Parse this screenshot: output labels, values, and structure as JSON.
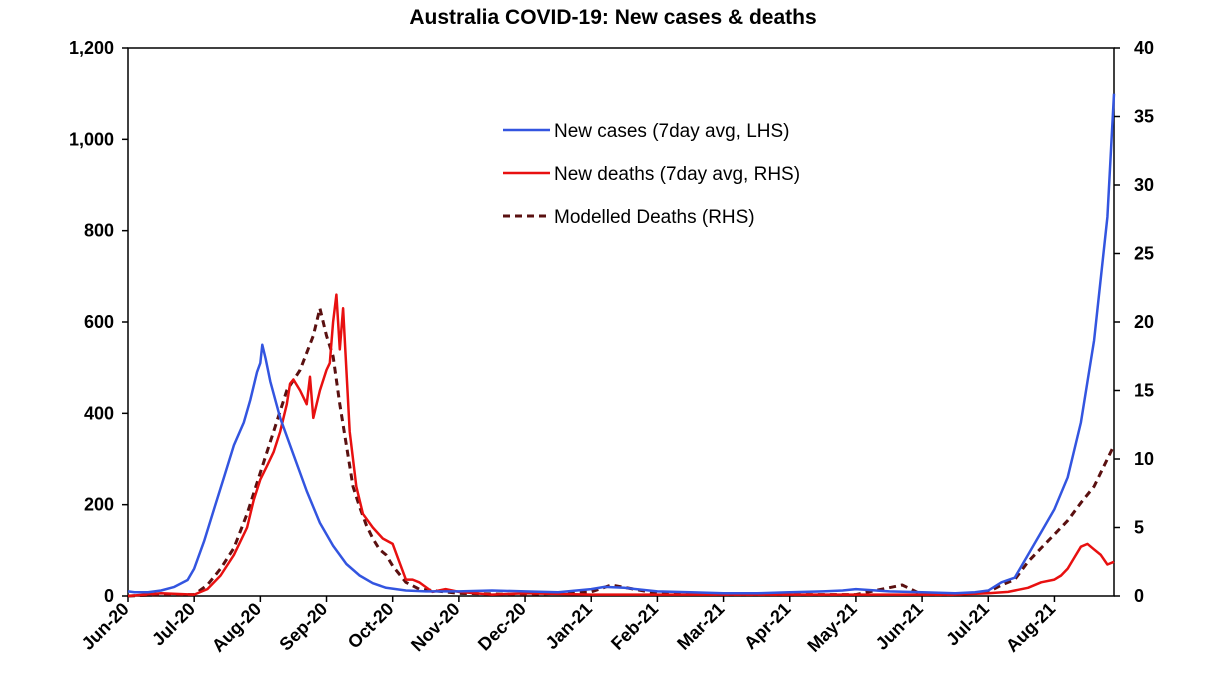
{
  "chart_data": {
    "type": "line",
    "title": "Australia COVID-19: New cases & deaths",
    "x_tick_labels": [
      "Jun-20",
      "Jul-20",
      "Aug-20",
      "Sep-20",
      "Oct-20",
      "Nov-20",
      "Dec-20",
      "Jan-21",
      "Feb-21",
      "Mar-21",
      "Apr-21",
      "May-21",
      "Jun-21",
      "Jul-21",
      "Aug-21"
    ],
    "x_range_months": [
      0,
      14.9
    ],
    "y_left": {
      "ticks": [
        0,
        200,
        400,
        600,
        800,
        1000,
        1200
      ],
      "tick_labels": [
        "0",
        "200",
        "400",
        "600",
        "800",
        "1,000",
        "1,200"
      ],
      "range": [
        0,
        1200
      ]
    },
    "y_right": {
      "ticks": [
        0,
        5,
        10,
        15,
        20,
        25,
        30,
        35,
        40
      ],
      "tick_labels": [
        "0",
        "5",
        "10",
        "15",
        "20",
        "25",
        "30",
        "35",
        "40"
      ],
      "range": [
        0,
        40
      ]
    },
    "grid": false,
    "legend_position": "top-center",
    "series": [
      {
        "name": "New cases (7day avg, LHS)",
        "axis": "left",
        "color": "#3355e0",
        "style": "solid",
        "x": [
          0,
          0.1,
          0.3,
          0.5,
          0.7,
          0.9,
          1.0,
          1.15,
          1.3,
          1.45,
          1.6,
          1.75,
          1.85,
          1.95,
          2.0,
          2.03,
          2.08,
          2.15,
          2.3,
          2.5,
          2.7,
          2.9,
          3.1,
          3.3,
          3.5,
          3.7,
          3.9,
          4.2,
          4.5,
          5.0,
          5.5,
          6.0,
          6.5,
          7.0,
          7.2,
          7.5,
          8.0,
          8.5,
          9.0,
          9.5,
          10.0,
          10.5,
          10.8,
          11.0,
          11.5,
          12.0,
          12.5,
          12.8,
          13.0,
          13.2,
          13.4,
          13.6,
          13.8,
          14.0,
          14.2,
          14.4,
          14.6,
          14.8,
          14.9
        ],
        "y": [
          10,
          8,
          8,
          12,
          20,
          35,
          60,
          120,
          190,
          260,
          330,
          380,
          430,
          490,
          510,
          550,
          520,
          470,
          390,
          310,
          230,
          160,
          110,
          70,
          45,
          28,
          18,
          12,
          10,
          10,
          12,
          10,
          8,
          15,
          20,
          18,
          10,
          8,
          6,
          6,
          8,
          10,
          12,
          15,
          10,
          8,
          6,
          8,
          12,
          30,
          40,
          90,
          140,
          190,
          260,
          380,
          560,
          830,
          1100
        ]
      },
      {
        "name": "New deaths (7day avg, RHS)",
        "axis": "right",
        "color": "#e81010",
        "style": "solid",
        "x": [
          0,
          0.5,
          1.0,
          1.2,
          1.4,
          1.6,
          1.8,
          1.9,
          2.0,
          2.1,
          2.2,
          2.3,
          2.4,
          2.45,
          2.5,
          2.6,
          2.7,
          2.75,
          2.8,
          2.9,
          3.0,
          3.05,
          3.1,
          3.15,
          3.2,
          3.25,
          3.3,
          3.35,
          3.45,
          3.55,
          3.7,
          3.85,
          4.0,
          4.1,
          4.2,
          4.3,
          4.4,
          4.6,
          4.8,
          5.0,
          5.5,
          6.0,
          7.0,
          8.0,
          9.0,
          10.0,
          11.0,
          12.0,
          12.5,
          13.0,
          13.3,
          13.6,
          13.8,
          14.0,
          14.1,
          14.2,
          14.3,
          14.4,
          14.5,
          14.6,
          14.7,
          14.8,
          14.9
        ],
        "y": [
          0,
          0.2,
          0.1,
          0.5,
          1.5,
          3,
          5,
          7,
          8.5,
          9.5,
          10.5,
          12,
          14,
          15.5,
          15.8,
          15,
          14,
          16,
          13,
          15,
          16.5,
          17,
          20,
          22,
          18,
          21,
          16.5,
          12,
          8,
          6,
          5,
          4.2,
          3.8,
          2.5,
          1.2,
          1.2,
          1.0,
          0.3,
          0.5,
          0.3,
          0.1,
          0.2,
          0.1,
          0.1,
          0.1,
          0.1,
          0.1,
          0.1,
          0.1,
          0.2,
          0.3,
          0.6,
          1.0,
          1.2,
          1.5,
          2.0,
          2.8,
          3.6,
          3.8,
          3.4,
          3.0,
          2.3,
          2.5
        ]
      },
      {
        "name": "Modelled Deaths (RHS)",
        "axis": "right",
        "color": "#5a1010",
        "style": "dashed",
        "x": [
          0,
          0.5,
          1.0,
          1.2,
          1.4,
          1.6,
          1.8,
          2.0,
          2.2,
          2.4,
          2.6,
          2.8,
          2.9,
          3.0,
          3.1,
          3.2,
          3.3,
          3.4,
          3.5,
          3.6,
          3.7,
          3.8,
          3.9,
          4.0,
          4.2,
          4.4,
          4.6,
          5.0,
          6.0,
          7.0,
          7.3,
          8.0,
          9.0,
          10.0,
          11.0,
          11.7,
          12.0,
          12.5,
          13.0,
          13.2,
          13.4,
          13.6,
          13.8,
          14.0,
          14.2,
          14.4,
          14.6,
          14.8,
          14.9
        ],
        "y": [
          0,
          0.1,
          0.1,
          0.8,
          2,
          3.5,
          6,
          9,
          12,
          15,
          16.5,
          19,
          21,
          19,
          17.5,
          14,
          11,
          8,
          6.5,
          5.2,
          4.2,
          3.4,
          3.0,
          2.2,
          1.0,
          0.5,
          0.4,
          0.2,
          0.1,
          0.3,
          0.8,
          0.2,
          0.1,
          0.1,
          0.1,
          0.8,
          0.1,
          0.1,
          0.3,
          0.8,
          1.2,
          2.5,
          3.5,
          4.5,
          5.5,
          6.8,
          8.0,
          10.0,
          11.0
        ]
      }
    ]
  }
}
